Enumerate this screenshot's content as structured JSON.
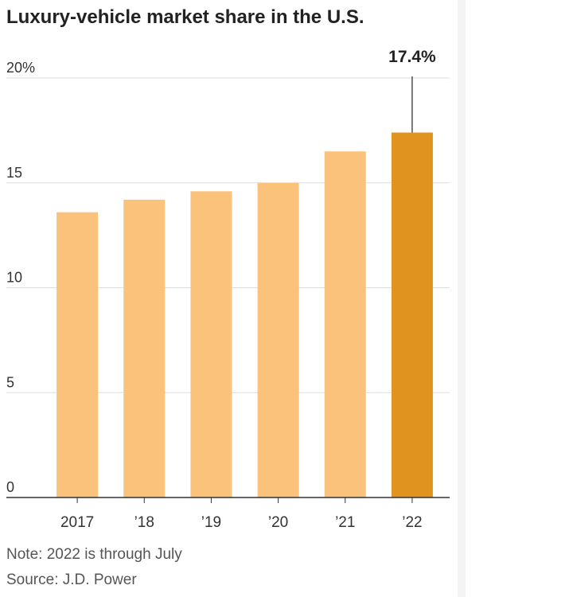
{
  "title": "Luxury-vehicle market share in the U.S.",
  "note": "Note: 2022 is through July",
  "source": "Source: J.D. Power",
  "colors": {
    "bar": "#fbc27b",
    "highlight": "#e0941f",
    "grid": "#dddddd",
    "axis": "#333333"
  },
  "chart_data": {
    "type": "bar",
    "title": "Luxury-vehicle market share in the U.S.",
    "xlabel": "",
    "ylabel": "",
    "categories": [
      "2017",
      "’18",
      "’19",
      "’20",
      "’21",
      "’22"
    ],
    "values": [
      13.6,
      14.2,
      14.6,
      15.0,
      16.5,
      17.4
    ],
    "highlight_index": 5,
    "ylim": [
      0,
      20
    ],
    "yticks": [
      {
        "value": 0,
        "label": "0"
      },
      {
        "value": 5,
        "label": "5"
      },
      {
        "value": 10,
        "label": "10"
      },
      {
        "value": 15,
        "label": "15"
      },
      {
        "value": 20,
        "label": "20%"
      }
    ],
    "annotation": {
      "index": 5,
      "label": "17.4%"
    },
    "grid": true
  }
}
